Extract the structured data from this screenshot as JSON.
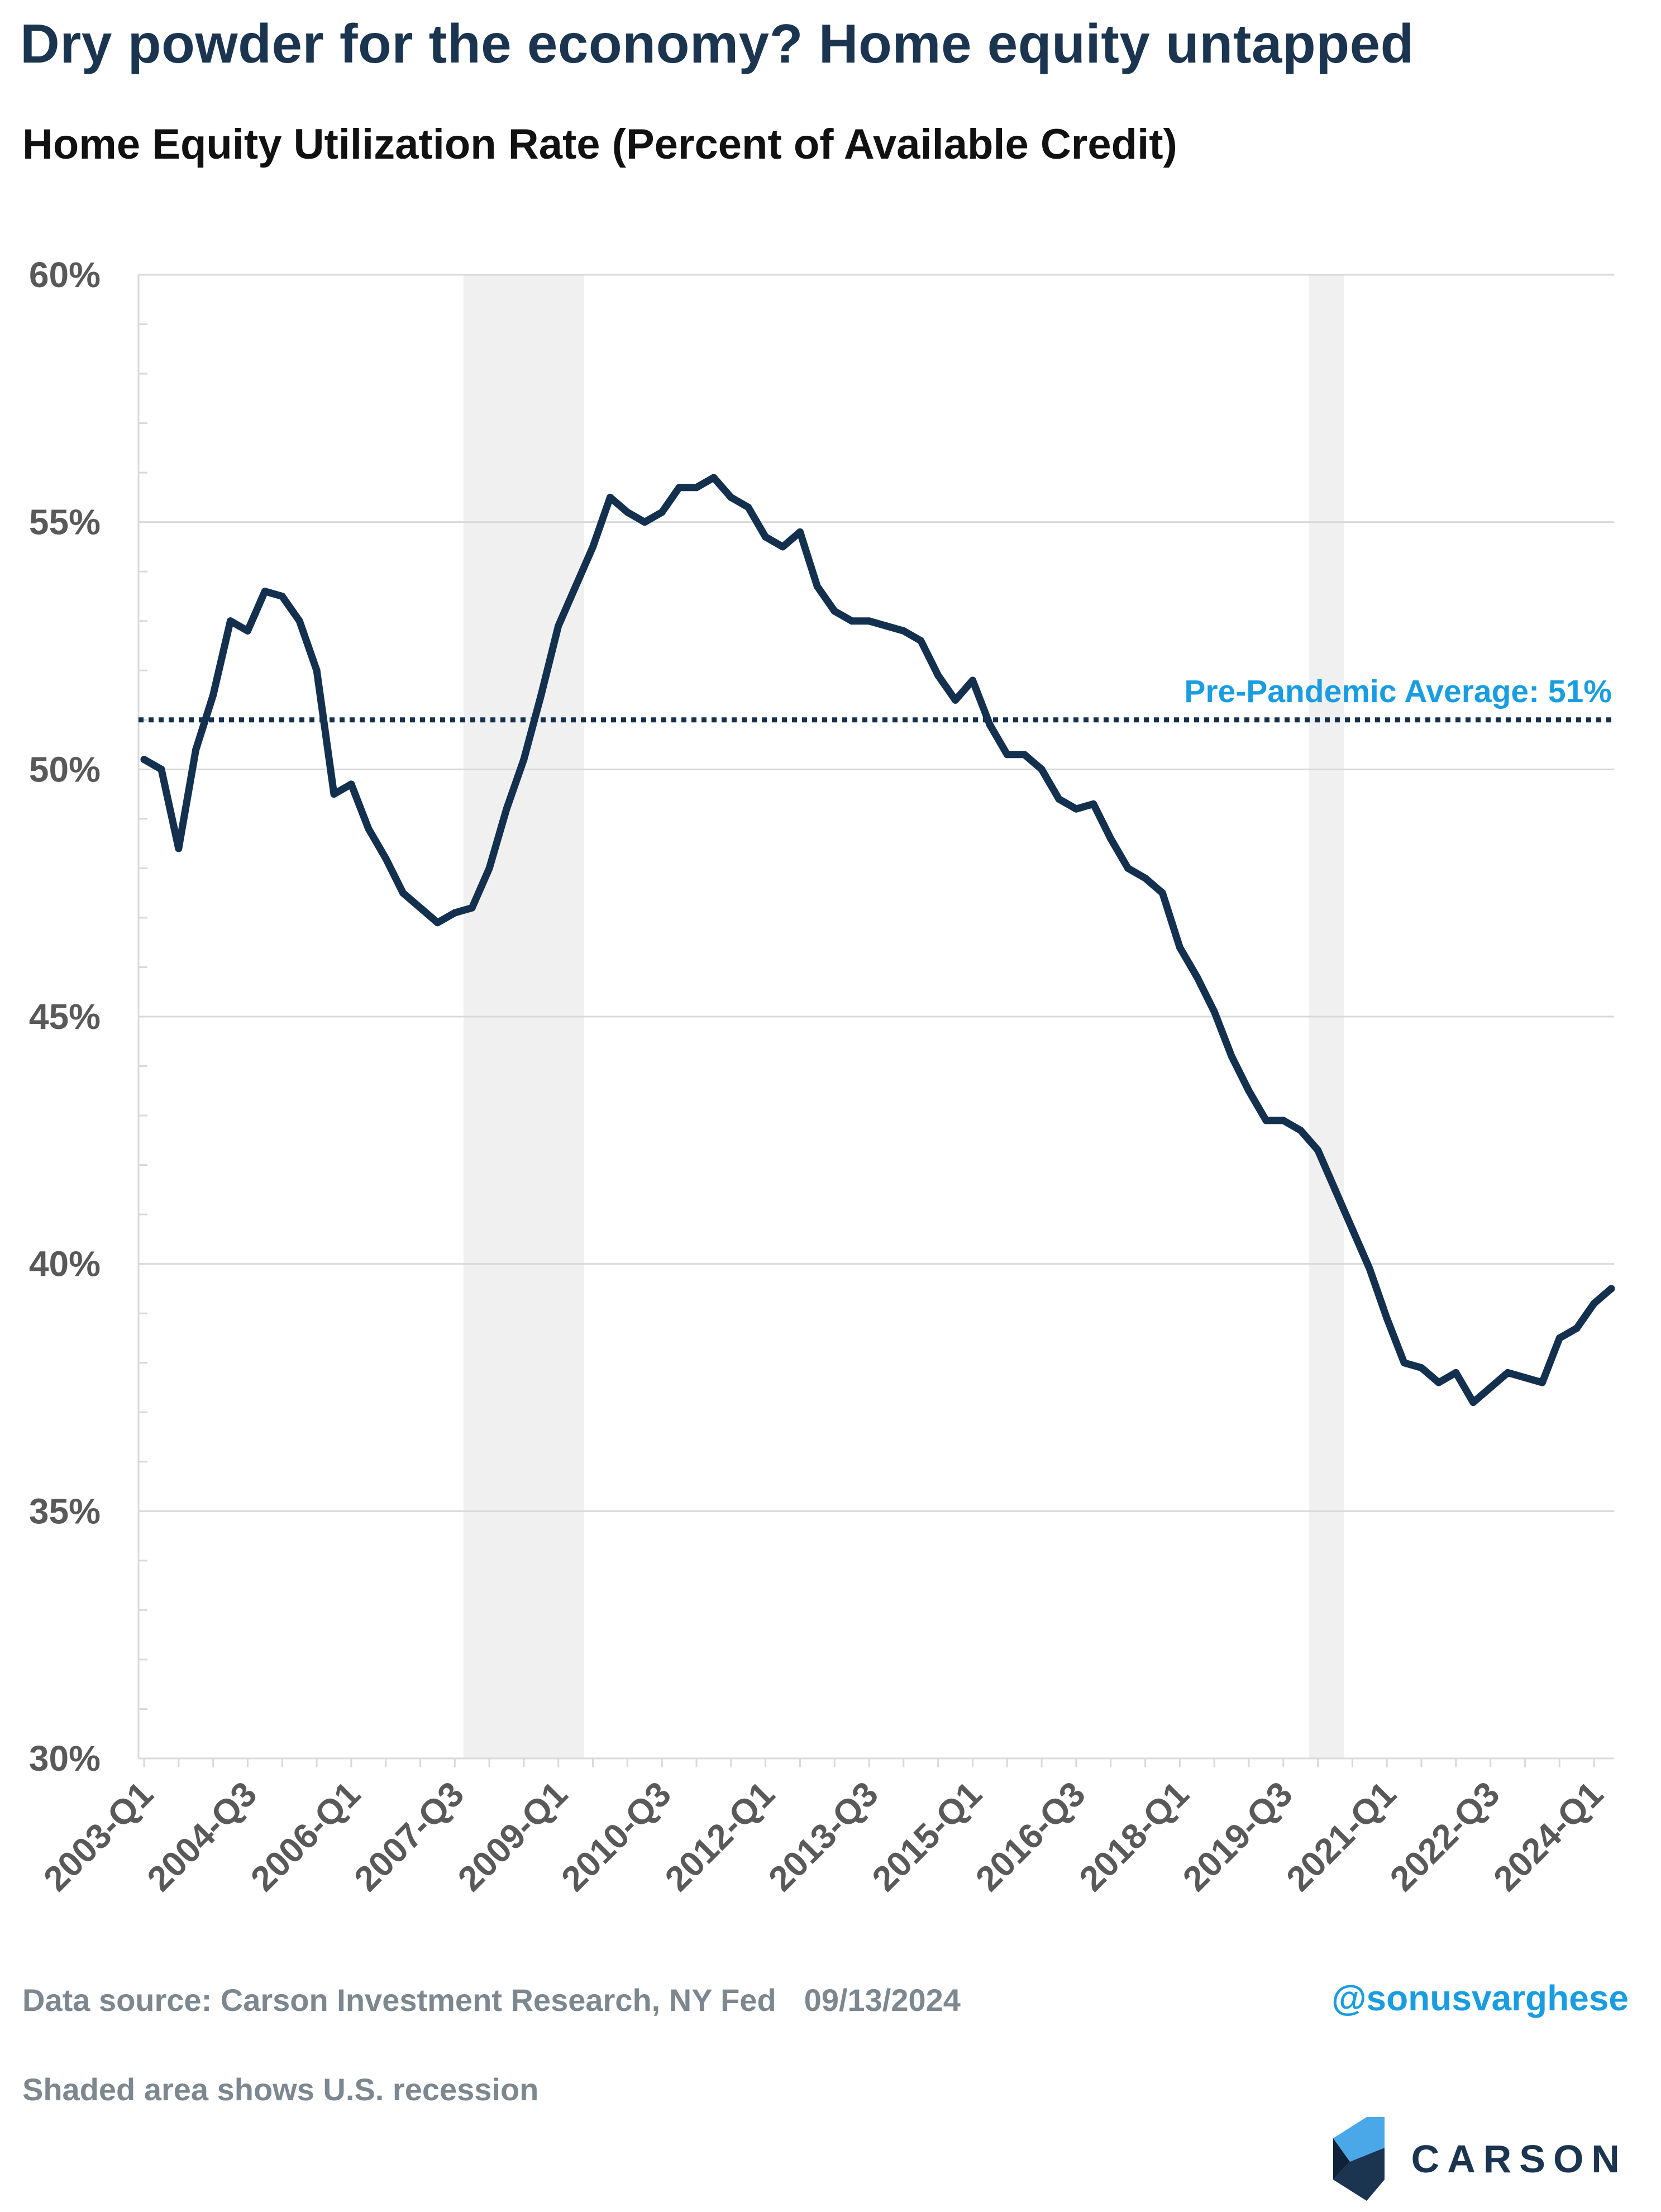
{
  "header": {
    "title": "Dry powder for the economy? Home equity untapped",
    "subtitle": "Home Equity Utilization Rate (Percent of Available Credit)"
  },
  "footer": {
    "source": "Data source: Carson Investment Research, NY Fed",
    "date": "09/13/2024",
    "note": "Shaded area shows U.S. recession",
    "handle": "@sonusvarghese",
    "brand": "CARSON"
  },
  "colors": {
    "line": "#14304f",
    "reference": "#14304f",
    "reference_label": "#1a9de0",
    "recession": "#f0f0f0",
    "grid": "#d9d9d9",
    "tick_label": "#595959"
  },
  "chart_data": {
    "type": "line",
    "title": "Home Equity Utilization Rate (Percent of Available Credit)",
    "xlabel": "",
    "ylabel": "",
    "ylim": [
      30,
      60
    ],
    "y_ticks": [
      30,
      35,
      40,
      45,
      50,
      55,
      60
    ],
    "y_tick_labels": [
      "30%",
      "35%",
      "40%",
      "45%",
      "50%",
      "55%",
      "60%"
    ],
    "x_tick_labels": [
      "2003-Q1",
      "2004-Q3",
      "2006-Q1",
      "2007-Q3",
      "2009-Q1",
      "2010-Q3",
      "2012-Q1",
      "2013-Q3",
      "2015-Q1",
      "2016-Q3",
      "2018-Q1",
      "2019-Q3",
      "2021-Q1",
      "2022-Q3",
      "2024-Q1"
    ],
    "grid": true,
    "reference_line": {
      "value": 51,
      "label": "Pre-Pandemic Average: 51%",
      "style": "dotted"
    },
    "recessions": [
      {
        "start": "2007-Q4",
        "end": "2009-Q2"
      },
      {
        "start": "2020-Q1",
        "end": "2020-Q2"
      }
    ],
    "series": [
      {
        "name": "Home Equity Utilization Rate",
        "start": "2003-Q1",
        "values": [
          50.2,
          50.0,
          48.4,
          50.4,
          51.5,
          53.0,
          52.8,
          53.6,
          53.5,
          53.0,
          52.0,
          49.5,
          49.7,
          48.8,
          48.2,
          47.5,
          47.2,
          46.9,
          47.1,
          47.2,
          48.0,
          49.2,
          50.2,
          51.5,
          52.9,
          53.7,
          54.5,
          55.5,
          55.2,
          55.0,
          55.2,
          55.7,
          55.7,
          55.9,
          55.5,
          55.3,
          54.7,
          54.5,
          54.8,
          53.7,
          53.2,
          53.0,
          53.0,
          52.9,
          52.8,
          52.6,
          51.9,
          51.4,
          51.8,
          50.9,
          50.3,
          50.3,
          50.0,
          49.4,
          49.2,
          49.3,
          48.6,
          48.0,
          47.8,
          47.5,
          46.4,
          45.8,
          45.1,
          44.2,
          43.5,
          42.9,
          42.9,
          42.7,
          42.3,
          41.5,
          40.7,
          39.9,
          38.9,
          38.0,
          37.9,
          37.6,
          37.8,
          37.2,
          37.5,
          37.8,
          37.7,
          37.6,
          38.5,
          38.7,
          39.2,
          39.5
        ]
      }
    ]
  }
}
